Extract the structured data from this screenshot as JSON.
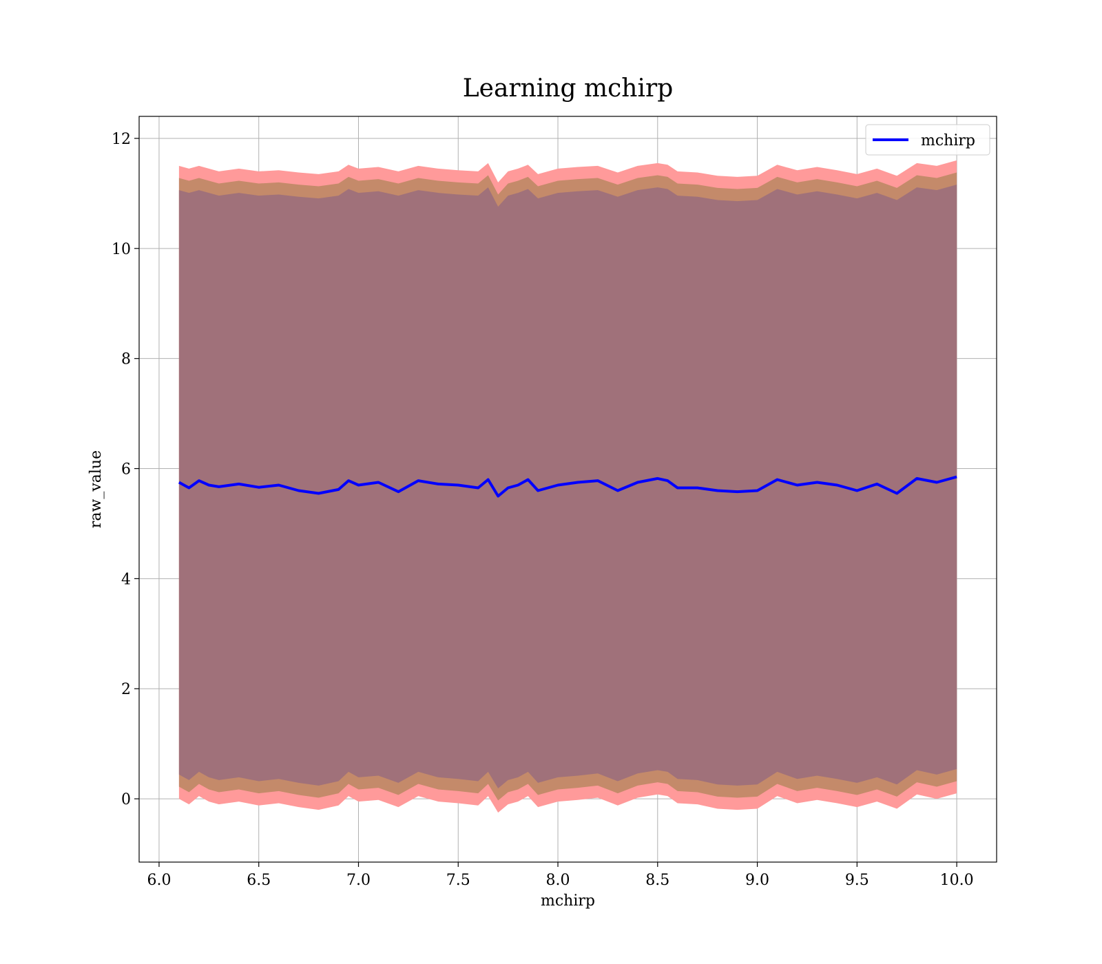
{
  "chart_data": {
    "type": "line",
    "title": "Learning mchirp",
    "xlabel": "mchirp",
    "ylabel": "raw_value",
    "xlim": [
      5.9,
      10.2
    ],
    "ylim": [
      -1.15,
      12.4
    ],
    "xticks": [
      6.0,
      6.5,
      7.0,
      7.5,
      8.0,
      8.5,
      9.0,
      9.5,
      10.0
    ],
    "xtick_labels": [
      "6.0",
      "6.5",
      "7.0",
      "7.5",
      "8.0",
      "8.5",
      "9.0",
      "9.5",
      "10.0"
    ],
    "yticks": [
      0,
      2,
      4,
      6,
      8,
      10,
      12
    ],
    "ytick_labels": [
      "0",
      "2",
      "4",
      "6",
      "8",
      "10",
      "12"
    ],
    "grid": true,
    "legend_position": "top-right",
    "series": [
      {
        "name": "mchirp",
        "color": "#0000ff",
        "x": [
          6.1,
          6.15,
          6.2,
          6.25,
          6.3,
          6.4,
          6.5,
          6.6,
          6.7,
          6.8,
          6.9,
          6.95,
          7.0,
          7.1,
          7.2,
          7.3,
          7.4,
          7.5,
          7.6,
          7.65,
          7.7,
          7.75,
          7.8,
          7.85,
          7.9,
          8.0,
          8.1,
          8.2,
          8.3,
          8.4,
          8.5,
          8.55,
          8.6,
          8.7,
          8.8,
          8.9,
          9.0,
          9.1,
          9.2,
          9.3,
          9.4,
          9.5,
          9.6,
          9.7,
          9.8,
          9.9,
          10.0
        ],
        "y": [
          5.75,
          5.65,
          5.78,
          5.7,
          5.67,
          5.72,
          5.66,
          5.7,
          5.6,
          5.55,
          5.62,
          5.78,
          5.7,
          5.75,
          5.58,
          5.78,
          5.72,
          5.7,
          5.65,
          5.8,
          5.5,
          5.65,
          5.7,
          5.8,
          5.6,
          5.7,
          5.75,
          5.78,
          5.6,
          5.75,
          5.82,
          5.78,
          5.65,
          5.65,
          5.6,
          5.58,
          5.6,
          5.8,
          5.7,
          5.75,
          5.7,
          5.6,
          5.72,
          5.55,
          5.82,
          5.75,
          5.85
        ],
        "band_upper_outer": [
          11.5,
          11.45,
          11.5,
          11.45,
          11.4,
          11.45,
          11.4,
          11.42,
          11.38,
          11.35,
          11.4,
          11.52,
          11.45,
          11.48,
          11.4,
          11.5,
          11.45,
          11.42,
          11.4,
          11.55,
          11.2,
          11.4,
          11.45,
          11.52,
          11.35,
          11.45,
          11.48,
          11.5,
          11.38,
          11.5,
          11.55,
          11.52,
          11.4,
          11.38,
          11.32,
          11.3,
          11.32,
          11.52,
          11.42,
          11.48,
          11.42,
          11.35,
          11.45,
          11.32,
          11.55,
          11.5,
          11.6
        ],
        "band_lower_outer": [
          0.0,
          -0.1,
          0.05,
          -0.05,
          -0.1,
          -0.05,
          -0.12,
          -0.08,
          -0.15,
          -0.2,
          -0.12,
          0.05,
          -0.05,
          -0.02,
          -0.15,
          0.05,
          -0.05,
          -0.08,
          -0.12,
          0.05,
          -0.25,
          -0.1,
          -0.05,
          0.05,
          -0.15,
          -0.05,
          -0.02,
          0.02,
          -0.12,
          0.02,
          0.08,
          0.05,
          -0.08,
          -0.1,
          -0.18,
          -0.2,
          -0.18,
          0.05,
          -0.08,
          -0.02,
          -0.08,
          -0.15,
          -0.05,
          -0.18,
          0.08,
          0.0,
          0.1
        ],
        "band_shrink_inner": 0.22
      }
    ],
    "colors": {
      "outer_band": "#ff9a9a",
      "middle_band": "#c48a6a",
      "inner_band": "#a0717a",
      "line": "#0000ff",
      "grid": "#b0b0b0"
    }
  }
}
